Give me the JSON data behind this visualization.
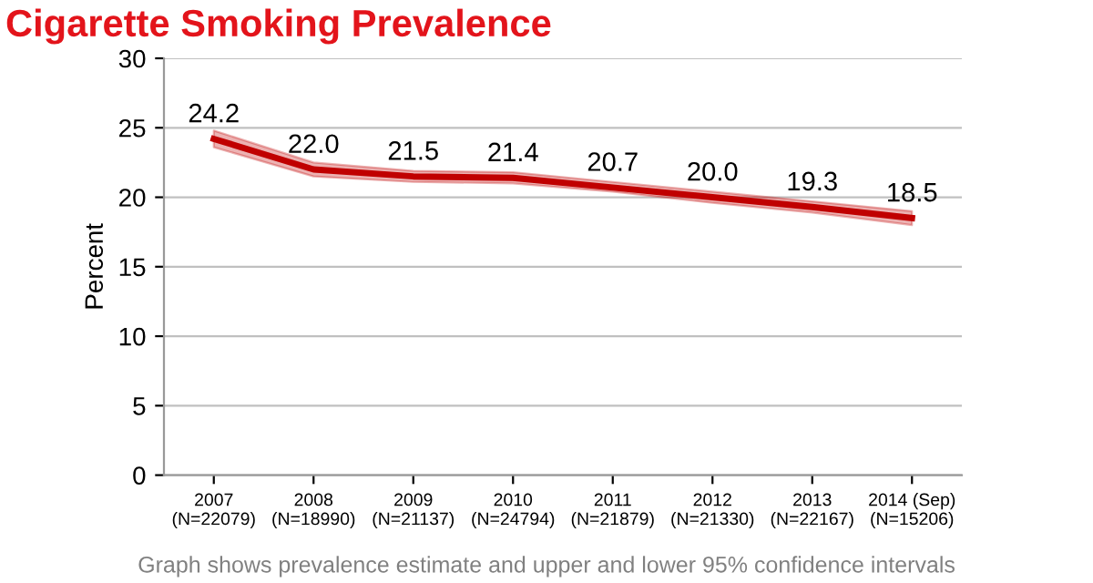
{
  "chart_data": {
    "type": "line",
    "title": "Cigarette Smoking Prevalence",
    "ylabel": "Percent",
    "categories": [
      "2007\n(N=22079)",
      "2008\n(N=18990)",
      "2009\n(N=21137)",
      "2010\n(N=24794)",
      "2011\n(N=21879)",
      "2012\n(N=21330)",
      "2013\n(N=22167)",
      "2014 (Sep)\n(N=15206)"
    ],
    "series": [
      {
        "color": "#c00000",
        "values": [
          24.2,
          22.0,
          21.5,
          21.4,
          20.7,
          20.0,
          19.3,
          18.5
        ],
        "lower": [
          23.6,
          21.5,
          21.1,
          21.0,
          20.4,
          19.6,
          18.9,
          18.0
        ],
        "upper": [
          24.8,
          22.5,
          21.9,
          21.8,
          21.1,
          20.4,
          19.7,
          19.0
        ],
        "value_labels": [
          "24.2",
          "22.0",
          "21.5",
          "21.4",
          "20.7",
          "20.0",
          "19.3",
          "18.5"
        ]
      }
    ],
    "ylim": [
      0,
      30
    ],
    "yticks": [
      0,
      5,
      10,
      15,
      20,
      25,
      30
    ],
    "grid": "y",
    "marker": "none",
    "line_style": "solid",
    "legend": false,
    "annotations": [
      "Graph shows prevalence estimate and upper and lower 95% confidence intervals"
    ]
  }
}
